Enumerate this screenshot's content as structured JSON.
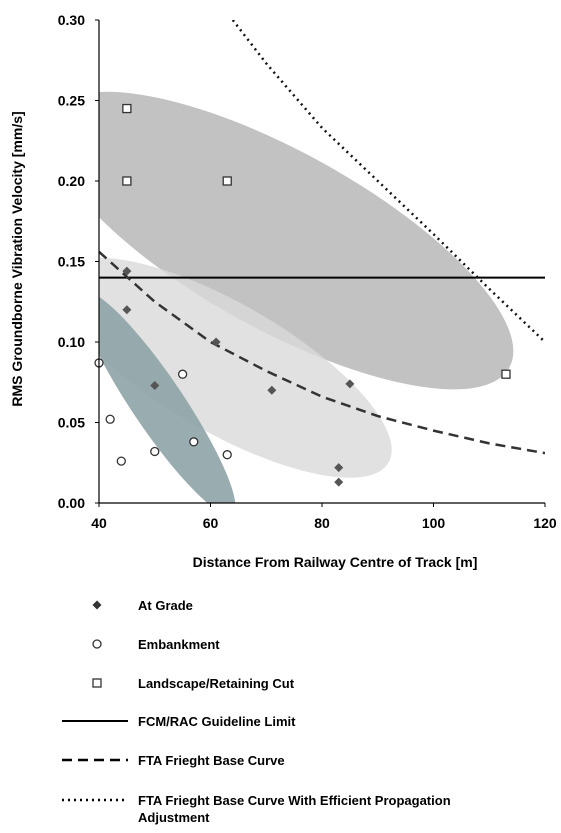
{
  "chart_data": {
    "type": "scatter",
    "xlabel": "Distance From Railway Centre of Track [m]",
    "ylabel": "RMS Groundborne Vibration Velocity [mm/s]",
    "xlim": [
      40,
      120
    ],
    "ylim": [
      0,
      0.3
    ],
    "x_ticks": [
      40,
      60,
      80,
      100,
      120
    ],
    "y_ticks": [
      0.0,
      0.05,
      0.1,
      0.15,
      0.2,
      0.25,
      0.3
    ],
    "y_tick_labels": [
      "0.00",
      "0.05",
      "0.10",
      "0.15",
      "0.20",
      "0.25",
      "0.30"
    ],
    "grid": false,
    "legend_position": "bottom",
    "series": [
      {
        "name": "At Grade",
        "marker": "diamond",
        "color": "#555555",
        "points": [
          [
            45,
            0.144
          ],
          [
            45,
            0.12
          ],
          [
            50,
            0.073
          ],
          [
            61,
            0.1
          ],
          [
            71,
            0.07
          ],
          [
            83,
            0.022
          ],
          [
            83,
            0.013
          ],
          [
            85,
            0.074
          ]
        ]
      },
      {
        "name": "Embankment",
        "marker": "circle-open",
        "color": "#333333",
        "points": [
          [
            40,
            0.087
          ],
          [
            42,
            0.052
          ],
          [
            44,
            0.026
          ],
          [
            50,
            0.032
          ],
          [
            55,
            0.08
          ],
          [
            57,
            0.038
          ],
          [
            63,
            0.03
          ]
        ]
      },
      {
        "name": "Landscape/Retaining Cut",
        "marker": "square-open",
        "color": "#333333",
        "points": [
          [
            45,
            0.245
          ],
          [
            45,
            0.2
          ],
          [
            63,
            0.2
          ],
          [
            113,
            0.08
          ]
        ]
      },
      {
        "name": "FCM/RAC Guideline Limit",
        "line": "solid",
        "color": "#000000",
        "x": [
          40,
          120
        ],
        "y": [
          0.14,
          0.14
        ]
      },
      {
        "name": "FTA Frieght Base Curve",
        "line": "dashed",
        "color": "#333333",
        "x": [
          40,
          50,
          60,
          70,
          80,
          90,
          100,
          110,
          120
        ],
        "y": [
          0.156,
          0.125,
          0.1,
          0.082,
          0.066,
          0.054,
          0.045,
          0.037,
          0.031
        ]
      },
      {
        "name": "FTA Frieght Base Curve With Efficient Propagation Adjustment",
        "line": "dotted",
        "color": "#111111",
        "x": [
          64,
          70,
          80,
          90,
          100,
          110,
          120
        ],
        "y": [
          0.3,
          0.273,
          0.233,
          0.2,
          0.167,
          0.133,
          0.1
        ]
      }
    ],
    "regions": [
      {
        "name": "landscape-cut-cluster",
        "color": "#a8a8a8",
        "opacity": 0.7,
        "center": [
          72.5,
          0.163
        ],
        "semi_axes": [
          47,
          0.055
        ],
        "rotation_deg": 29
      },
      {
        "name": "at-grade-cluster",
        "color": "#d9d9d9",
        "opacity": 0.8,
        "center": [
          62.5,
          0.084
        ],
        "semi_axes": [
          34,
          0.04
        ],
        "rotation_deg": 30
      },
      {
        "name": "embankment-cluster",
        "color": "#8ea3a6",
        "opacity": 0.9,
        "center": [
          50.5,
          0.062
        ],
        "semi_axes": [
          24,
          0.016
        ],
        "rotation_deg": 56
      }
    ]
  },
  "legend": [
    {
      "label": "At Grade",
      "marker": "diamond"
    },
    {
      "label": "Embankment",
      "marker": "circle-open"
    },
    {
      "label": "Landscape/Retaining Cut",
      "marker": "square-open"
    },
    {
      "label": "FCM/RAC Guideline Limit",
      "marker": "line-solid"
    },
    {
      "label": "FTA Frieght Base Curve",
      "marker": "line-dashed"
    },
    {
      "label": "FTA Frieght Base Curve With Efficient Propagation",
      "label_line2": "Adjustment",
      "marker": "line-dotted"
    }
  ]
}
